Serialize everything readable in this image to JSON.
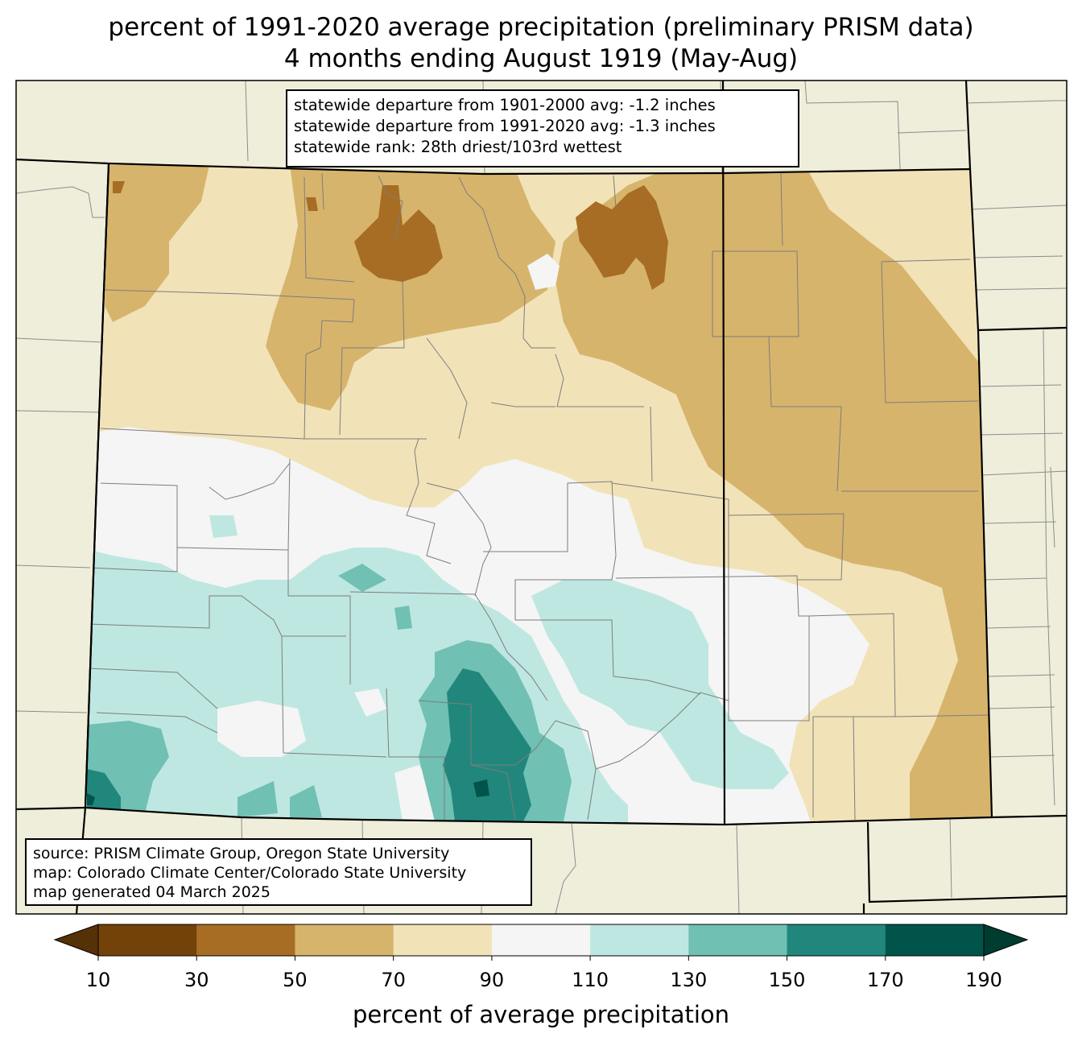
{
  "title": {
    "line1": "percent of 1991-2020 average precipitation (preliminary PRISM data)",
    "line2": "4 months ending August 1919 (May-Aug)"
  },
  "stats_box": {
    "line1": "statewide departure from 1901-2000 avg: -1.2 inches",
    "line2": "statewide departure from 1991-2020 avg: -1.3 inches",
    "line3": "statewide rank: 28th driest/103rd wettest"
  },
  "source_box": {
    "line1": "source: PRISM Climate Group, Oregon State University",
    "line2": "map: Colorado Climate Center/Colorado State University",
    "line3": "map generated 04 March 2025"
  },
  "colorbar": {
    "label": "percent of average precipitation",
    "ticks": [
      "10",
      "30",
      "50",
      "70",
      "90",
      "110",
      "130",
      "150",
      "170",
      "190"
    ],
    "colors": [
      "#734209",
      "#a76d24",
      "#d7b46c",
      "#f2e2b8",
      "#f4f5f4",
      "#bee7e1",
      "#70c0b3",
      "#21877c",
      "#01544a"
    ],
    "under_color": "#553108",
    "over_color": "#003c30"
  },
  "map": {
    "background_color": "#efeedb",
    "legend_categories": {
      "c30_50": "#a76d24",
      "c50_70": "#d7b46c",
      "c70_90": "#f2e2b8",
      "c90_110": "#f4f5f4",
      "c110_130": "#bee7e1",
      "c130_150": "#70c0b3",
      "c150_170": "#21877c",
      "c170_190": "#01544a"
    }
  }
}
